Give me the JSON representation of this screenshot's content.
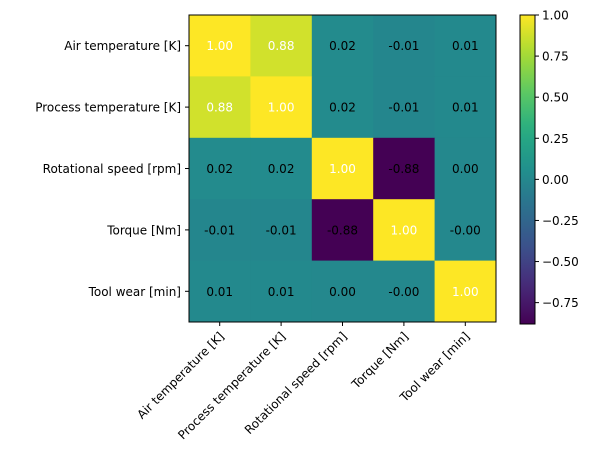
{
  "chart_data": {
    "type": "heatmap",
    "title": "",
    "rows": [
      "Air temperature [K]",
      "Process temperature [K]",
      "Rotational speed [rpm]",
      "Torque [Nm]",
      "Tool wear [min]"
    ],
    "cols": [
      "Air temperature [K]",
      "Process temperature [K]",
      "Rotational speed [rpm]",
      "Torque [Nm]",
      "Tool wear [min]"
    ],
    "values": [
      [
        1.0,
        0.88,
        0.02,
        -0.01,
        0.01
      ],
      [
        0.88,
        1.0,
        0.02,
        -0.01,
        0.01
      ],
      [
        0.02,
        0.02,
        1.0,
        -0.88,
        0.0
      ],
      [
        -0.01,
        -0.01,
        -0.88,
        1.0,
        -0.0
      ],
      [
        0.01,
        0.01,
        0.0,
        -0.0,
        1.0
      ]
    ],
    "labels": [
      [
        "1.00",
        "0.88",
        "0.02",
        "-0.01",
        "0.01"
      ],
      [
        "0.88",
        "1.00",
        "0.02",
        "-0.01",
        "0.01"
      ],
      [
        "0.02",
        "0.02",
        "1.00",
        "-0.88",
        "0.00"
      ],
      [
        "-0.01",
        "-0.01",
        "-0.88",
        "1.00",
        "-0.00"
      ],
      [
        "0.01",
        "0.01",
        "0.00",
        "-0.00",
        "1.00"
      ]
    ],
    "colorbar": {
      "colormap": "viridis",
      "range": [
        -0.88,
        1.0
      ],
      "ticks": [
        1.0,
        0.75,
        0.5,
        0.25,
        0.0,
        -0.25,
        -0.5,
        -0.75
      ],
      "tick_labels": [
        "1.00",
        "0.75",
        "0.50",
        "0.25",
        "0.00",
        "−0.25",
        "−0.50",
        "−0.75"
      ]
    },
    "xtick_rotation": "45"
  }
}
